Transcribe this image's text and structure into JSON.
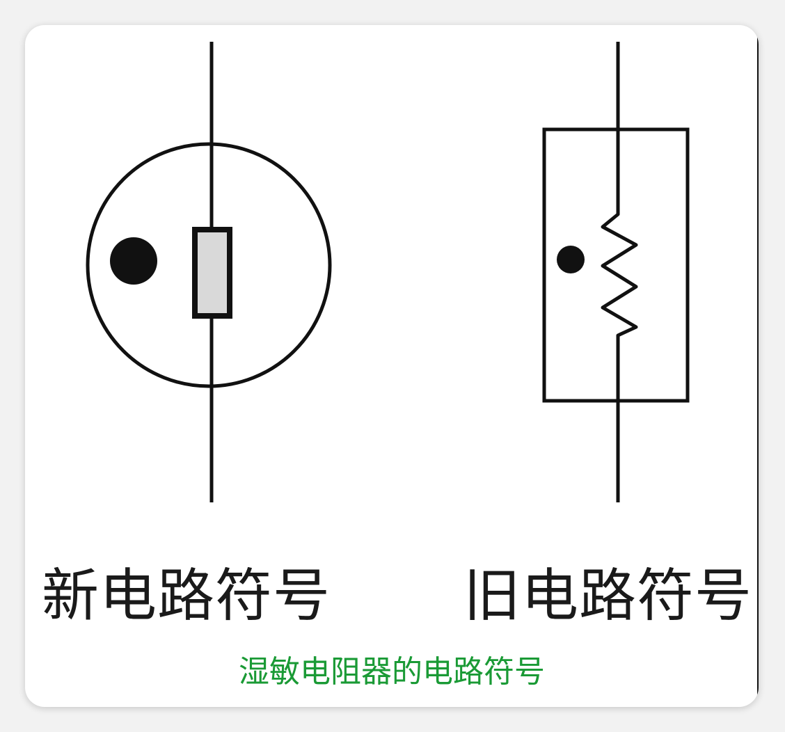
{
  "diagram": {
    "new_symbol_label": "新电路符号",
    "old_symbol_label": "旧电路符号"
  },
  "caption": "湿敏电阻器的电路符号",
  "colors": {
    "caption": "#1a9a35",
    "stroke": "#111111",
    "resistor_fill": "#d9d9d9",
    "card_background": "#ffffff",
    "page_background": "#f2f2f2"
  }
}
